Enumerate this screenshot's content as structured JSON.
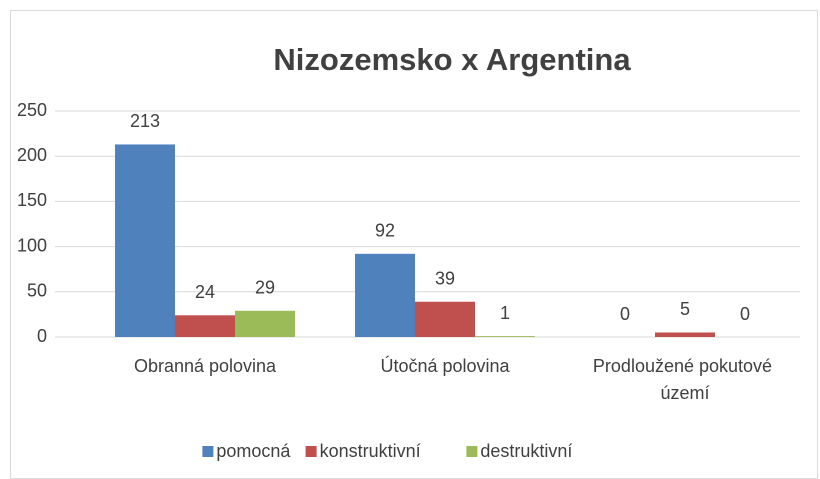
{
  "chart_data": {
    "type": "bar",
    "title": "Nizozemsko x Argentina",
    "categories": [
      "Obranná polovina",
      "Útočná polovina",
      "Prodloužené pokutové území"
    ],
    "series": [
      {
        "name": "pomocná",
        "color": "#4f81bd",
        "values": [
          213,
          92,
          0
        ]
      },
      {
        "name": "konstruktivní",
        "color": "#c0504d",
        "values": [
          24,
          39,
          5
        ]
      },
      {
        "name": "destruktivní",
        "color": "#9bbb59",
        "values": [
          29,
          1,
          0
        ]
      }
    ],
    "ylim": [
      0,
      250
    ],
    "yticks": [
      0,
      50,
      100,
      150,
      200,
      250
    ],
    "grid": true,
    "legend": "bottom"
  }
}
